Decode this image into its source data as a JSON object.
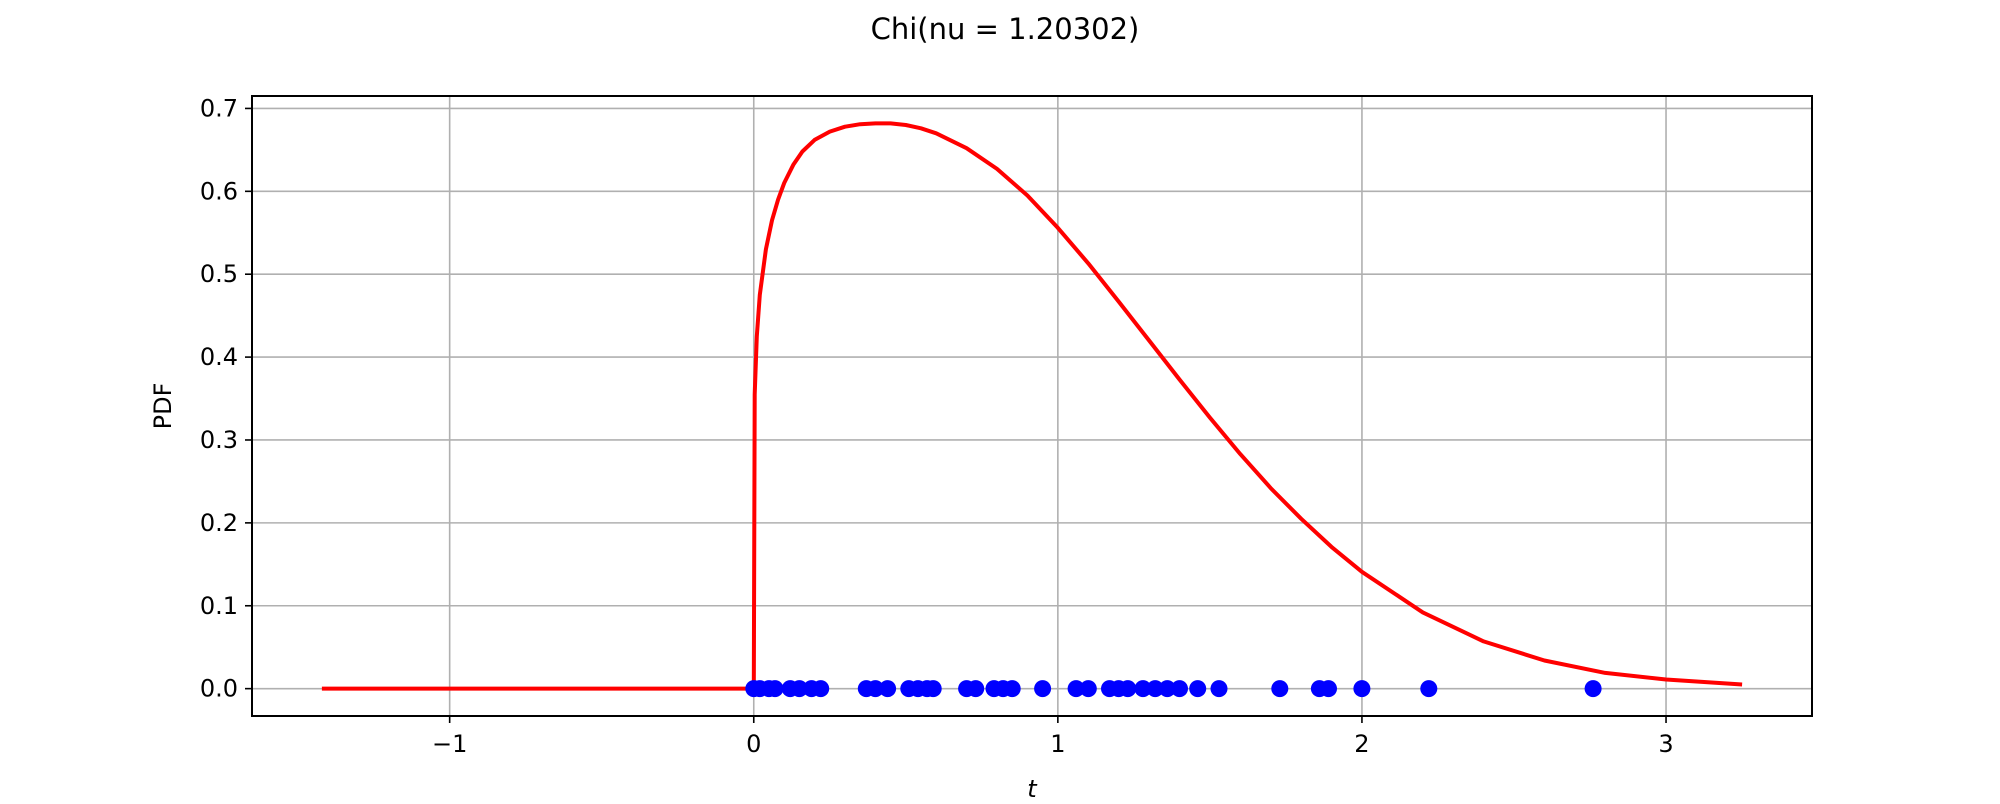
{
  "chart_data": {
    "type": "line",
    "title": "Chi(nu = 1.20302)",
    "xlabel": "t",
    "ylabel": "PDF",
    "xlim": [
      -1.65,
      3.48
    ],
    "ylim": [
      -0.033,
      0.715
    ],
    "grid": true,
    "x_ticks": [
      -1,
      0,
      1,
      2,
      3
    ],
    "x_tick_labels": [
      "−1",
      "0",
      "1",
      "2",
      "3"
    ],
    "y_ticks": [
      0.0,
      0.1,
      0.2,
      0.3,
      0.4,
      0.5,
      0.6,
      0.7
    ],
    "y_tick_labels": [
      "0.0",
      "0.1",
      "0.2",
      "0.3",
      "0.4",
      "0.5",
      "0.6",
      "0.7"
    ],
    "colors": {
      "pdf_line": "#ff0000",
      "samples": "#0000ff",
      "grid": "#b0b0b0"
    },
    "series": [
      {
        "kind": "line",
        "x": [
          -1.42,
          -0.5,
          0.0,
          0.003,
          0.01,
          0.02,
          0.04,
          0.06,
          0.08,
          0.1,
          0.13,
          0.16,
          0.2,
          0.25,
          0.3,
          0.35,
          0.4,
          0.45,
          0.5,
          0.55,
          0.6,
          0.7,
          0.8,
          0.9,
          1.0,
          1.1,
          1.2,
          1.3,
          1.4,
          1.5,
          1.6,
          1.7,
          1.8,
          1.9,
          2.0,
          2.2,
          2.4,
          2.6,
          2.8,
          3.0,
          3.25
        ],
        "y": [
          0.0,
          0.0,
          0.0,
          0.355,
          0.425,
          0.475,
          0.53,
          0.565,
          0.59,
          0.61,
          0.632,
          0.648,
          0.662,
          0.672,
          0.678,
          0.681,
          0.682,
          0.682,
          0.68,
          0.676,
          0.67,
          0.652,
          0.627,
          0.595,
          0.556,
          0.513,
          0.467,
          0.42,
          0.373,
          0.327,
          0.283,
          0.242,
          0.205,
          0.171,
          0.141,
          0.092,
          0.057,
          0.034,
          0.019,
          0.011,
          0.005
        ]
      },
      {
        "kind": "scatter",
        "x": [
          0.0,
          0.02,
          0.05,
          0.07,
          0.12,
          0.15,
          0.19,
          0.22,
          0.37,
          0.4,
          0.44,
          0.51,
          0.54,
          0.57,
          0.59,
          0.7,
          0.73,
          0.79,
          0.82,
          0.85,
          0.95,
          1.06,
          1.1,
          1.17,
          1.2,
          1.23,
          1.28,
          1.32,
          1.36,
          1.4,
          1.46,
          1.53,
          1.73,
          1.86,
          1.89,
          2.0,
          2.22,
          2.76
        ],
        "y": [
          0,
          0,
          0,
          0,
          0,
          0,
          0,
          0,
          0,
          0,
          0,
          0,
          0,
          0,
          0,
          0,
          0,
          0,
          0,
          0,
          0,
          0,
          0,
          0,
          0,
          0,
          0,
          0,
          0,
          0,
          0,
          0,
          0,
          0,
          0,
          0,
          0,
          0
        ]
      }
    ]
  }
}
